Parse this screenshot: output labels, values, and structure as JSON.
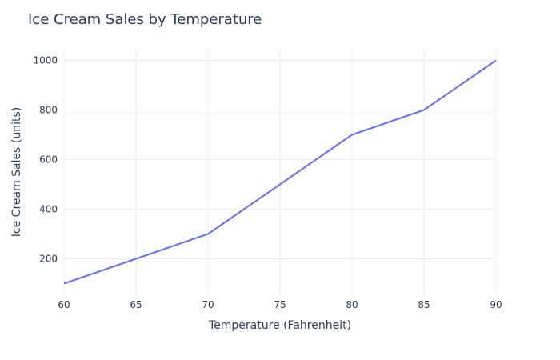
{
  "chart_data": {
    "type": "line",
    "title": "Ice Cream Sales by Temperature",
    "xlabel": "Temperature (Fahrenheit)",
    "ylabel": "Ice Cream Sales (units)",
    "x": [
      60,
      65,
      70,
      75,
      80,
      85,
      90
    ],
    "series": [
      {
        "values": [
          100,
          200,
          300,
          500,
          700,
          800,
          1000
        ]
      }
    ],
    "xlim": [
      60,
      90
    ],
    "ylim": [
      50,
      1050
    ],
    "xticks": [
      60,
      65,
      70,
      75,
      80,
      85,
      90
    ],
    "yticks": [
      200,
      400,
      600,
      800,
      1000
    ],
    "grid": true,
    "colors": {
      "line": "#636efa",
      "grid": "#eeeeee",
      "text": "#2a3f5f"
    }
  }
}
